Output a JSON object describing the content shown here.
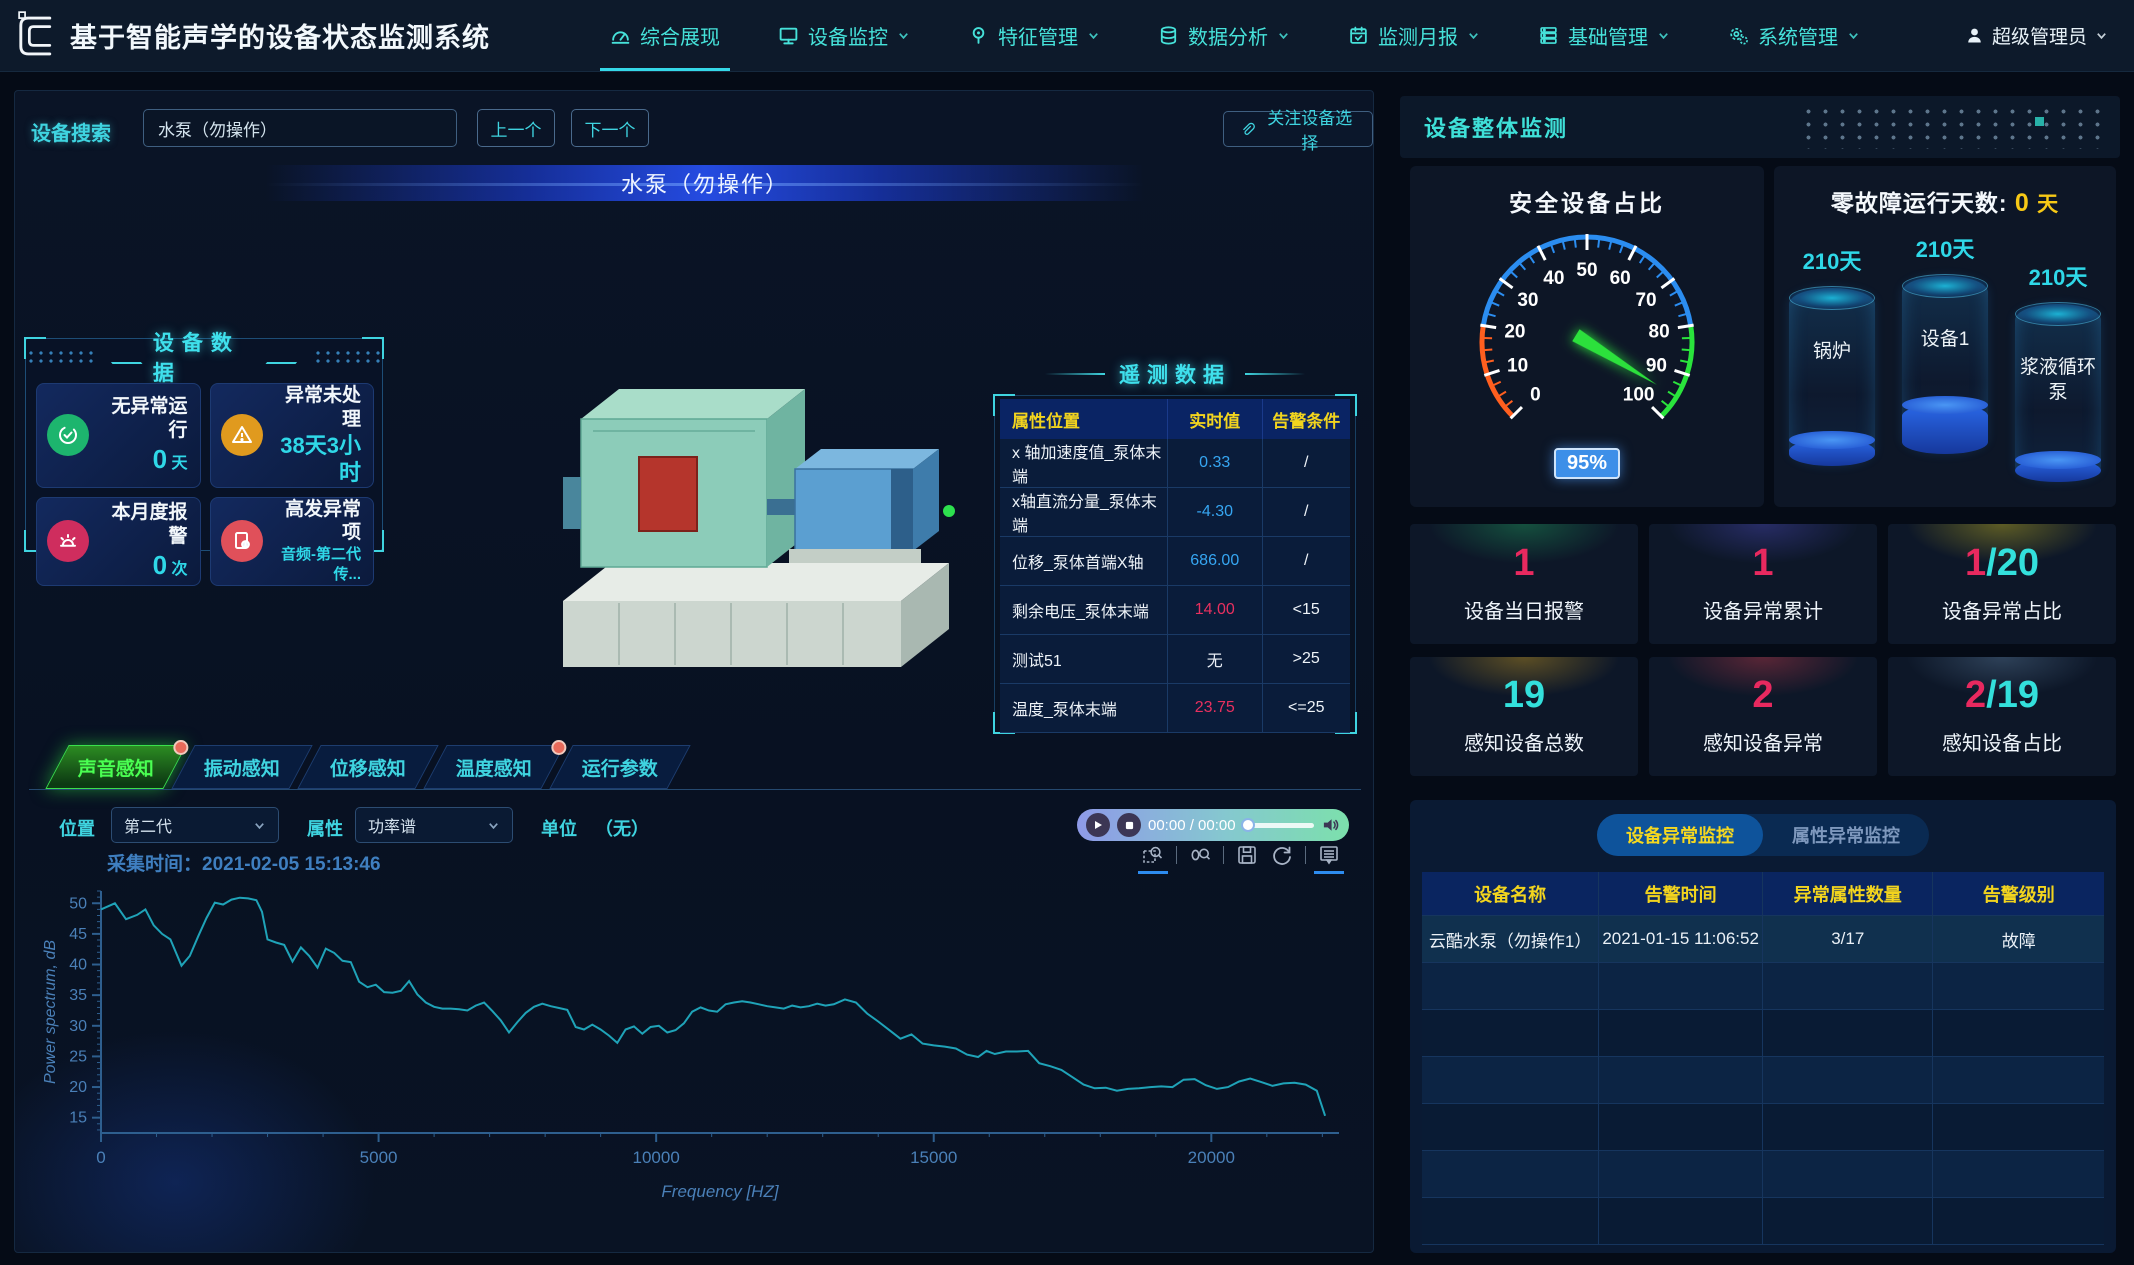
{
  "app": {
    "title": "基于智能声学的设备状态监测系统"
  },
  "nav": {
    "items": [
      {
        "label": "综合展现"
      },
      {
        "label": "设备监控"
      },
      {
        "label": "特征管理"
      },
      {
        "label": "数据分析"
      },
      {
        "label": "监测月报"
      },
      {
        "label": "基础管理"
      },
      {
        "label": "系统管理"
      }
    ],
    "user": {
      "label": "超级管理员"
    }
  },
  "left": {
    "search": {
      "label": "设备搜索",
      "value": "水泵（勿操作）",
      "prev": "上一个",
      "next": "下一个",
      "focus_button": "关注设备选择"
    },
    "model": {
      "title": "水泵（勿操作）"
    },
    "device_data": {
      "title": "设备数据",
      "cards": [
        {
          "title": "无异常运行",
          "value": "0",
          "unit": " 天",
          "icon_color": "#1db56e"
        },
        {
          "title": "异常未处理",
          "value": "38天3小时",
          "unit": "",
          "icon_color": "#e09a1e"
        },
        {
          "title": "本月度报警",
          "value": "0",
          "unit": " 次",
          "icon_color": "#cf2d5e"
        },
        {
          "title": "高发异常项",
          "value": "音频-第二代传...",
          "unit": "",
          "icon_color": "#e0505a"
        }
      ]
    },
    "telemetry": {
      "title": "遥测数据",
      "headers": [
        "属性位置",
        "实时值",
        "告警条件"
      ],
      "rows": [
        {
          "name": "x 轴加速度值_泵体末端",
          "value": "0.33",
          "value_color": "#36a6f2",
          "cond": "/"
        },
        {
          "name": "x轴直流分量_泵体末端",
          "value": "-4.30",
          "value_color": "#36a6f2",
          "cond": "/"
        },
        {
          "name": "位移_泵体首端X轴",
          "value": "686.00",
          "value_color": "#36a6f2",
          "cond": "/"
        },
        {
          "name": "剩余电压_泵体末端",
          "value": "14.00",
          "value_color": "#e8305f",
          "cond": "<15"
        },
        {
          "name": "测试51",
          "value": "无",
          "value_color": "#e9eef5",
          "cond": ">25"
        },
        {
          "name": "温度_泵体末端",
          "value": "23.75",
          "value_color": "#e8305f",
          "cond": "<=25"
        }
      ]
    },
    "sense_tabs": [
      {
        "label": "声音感知"
      },
      {
        "label": "振动感知"
      },
      {
        "label": "位移感知"
      },
      {
        "label": "温度感知"
      },
      {
        "label": "运行参数"
      }
    ],
    "controls": {
      "position_label": "位置",
      "position_value": "第二代",
      "attr_label": "属性",
      "attr_value": "功率谱",
      "unit_label": "单位",
      "unit_value": "（无）",
      "player_time": "00:00 / 00:00"
    },
    "chart_meta": {
      "capture_label": "采集时间：",
      "capture_time": "2021-02-05 15:13:46"
    }
  },
  "chart_data": {
    "type": "line",
    "title": "",
    "xlabel": "Frequency [HZ]",
    "ylabel": "Power spectrum, dB",
    "xlim": [
      0,
      22300
    ],
    "ylim": [
      12.5,
      52
    ],
    "xticks": [
      0,
      5000,
      10000,
      15000,
      20000
    ],
    "yticks": [
      15,
      20,
      25,
      30,
      35,
      40,
      45,
      50
    ],
    "x_minor_step": 1000,
    "y_minor_step": 1,
    "line_color": "#1fa3b8",
    "axis_color": "#2e5f8f",
    "tick_text_color": "#4a80b8",
    "grid": false,
    "legend": null,
    "series": [
      {
        "name": "功率谱",
        "points": [
          [
            0,
            49
          ],
          [
            250,
            50
          ],
          [
            450,
            47.4
          ],
          [
            650,
            48.1
          ],
          [
            800,
            49
          ],
          [
            950,
            46.4
          ],
          [
            1100,
            45
          ],
          [
            1250,
            44.1
          ],
          [
            1450,
            39.8
          ],
          [
            1600,
            41.4
          ],
          [
            1750,
            44.6
          ],
          [
            1900,
            47.6
          ],
          [
            2050,
            50.1
          ],
          [
            2200,
            49.8
          ],
          [
            2350,
            50.6
          ],
          [
            2500,
            50.9
          ],
          [
            2650,
            50.8
          ],
          [
            2800,
            50.5
          ],
          [
            2900,
            48.6
          ],
          [
            3000,
            44.1
          ],
          [
            3150,
            43.6
          ],
          [
            3300,
            43.2
          ],
          [
            3450,
            40.5
          ],
          [
            3600,
            42.8
          ],
          [
            3750,
            41.4
          ],
          [
            3900,
            39.5
          ],
          [
            4050,
            42.6
          ],
          [
            4200,
            41.9
          ],
          [
            4350,
            40.6
          ],
          [
            4500,
            40.4
          ],
          [
            4650,
            37.2
          ],
          [
            4800,
            36.3
          ],
          [
            4950,
            36.7
          ],
          [
            5100,
            35.5
          ],
          [
            5250,
            35.4
          ],
          [
            5400,
            35.7
          ],
          [
            5550,
            37.3
          ],
          [
            5700,
            35.1
          ],
          [
            5850,
            33.8
          ],
          [
            6000,
            33.1
          ],
          [
            6150,
            32.8
          ],
          [
            6300,
            32.8
          ],
          [
            6450,
            32.7
          ],
          [
            6600,
            32.5
          ],
          [
            6750,
            33.3
          ],
          [
            6900,
            33.8
          ],
          [
            7050,
            32.4
          ],
          [
            7200,
            30.9
          ],
          [
            7350,
            28.9
          ],
          [
            7500,
            30.6
          ],
          [
            7650,
            32.1
          ],
          [
            7800,
            33.1
          ],
          [
            7950,
            33.6
          ],
          [
            8100,
            33.2
          ],
          [
            8250,
            32.9
          ],
          [
            8400,
            32.6
          ],
          [
            8550,
            29.8
          ],
          [
            8700,
            29.4
          ],
          [
            8850,
            30.2
          ],
          [
            9000,
            29.4
          ],
          [
            9150,
            28.4
          ],
          [
            9300,
            27.2
          ],
          [
            9450,
            29.4
          ],
          [
            9600,
            29.9
          ],
          [
            9750,
            28.7
          ],
          [
            9900,
            29.8
          ],
          [
            10050,
            30
          ],
          [
            10200,
            28.9
          ],
          [
            10350,
            29.3
          ],
          [
            10500,
            30.4
          ],
          [
            10650,
            32.3
          ],
          [
            10800,
            33
          ],
          [
            10950,
            32.5
          ],
          [
            11100,
            32.3
          ],
          [
            11250,
            33.5
          ],
          [
            11400,
            33.8
          ],
          [
            11550,
            34
          ],
          [
            11700,
            33.8
          ],
          [
            11850,
            33.5
          ],
          [
            12000,
            33.2
          ],
          [
            12150,
            33
          ],
          [
            12300,
            32.8
          ],
          [
            12450,
            33.3
          ],
          [
            12600,
            33
          ],
          [
            12750,
            33.2
          ],
          [
            12900,
            33.6
          ],
          [
            13050,
            33.3
          ],
          [
            13200,
            33.5
          ],
          [
            13400,
            34.3
          ],
          [
            13600,
            33.8
          ],
          [
            13800,
            32
          ],
          [
            14000,
            30.7
          ],
          [
            14200,
            29.3
          ],
          [
            14400,
            27.9
          ],
          [
            14600,
            28.6
          ],
          [
            14800,
            27.1
          ],
          [
            15000,
            26.8
          ],
          [
            15200,
            26.6
          ],
          [
            15400,
            26.3
          ],
          [
            15600,
            25.3
          ],
          [
            15800,
            24.9
          ],
          [
            15950,
            25.9
          ],
          [
            16100,
            25.4
          ],
          [
            16300,
            25.8
          ],
          [
            16500,
            25.8
          ],
          [
            16700,
            25.9
          ],
          [
            16900,
            23.9
          ],
          [
            17100,
            23.4
          ],
          [
            17300,
            22.8
          ],
          [
            17500,
            21.6
          ],
          [
            17700,
            20.4
          ],
          [
            17900,
            19.8
          ],
          [
            18100,
            19.9
          ],
          [
            18300,
            19.4
          ],
          [
            18500,
            19.7
          ],
          [
            18700,
            19.8
          ],
          [
            18900,
            20
          ],
          [
            19100,
            20.1
          ],
          [
            19300,
            20
          ],
          [
            19500,
            21.2
          ],
          [
            19700,
            21.3
          ],
          [
            19900,
            20.3
          ],
          [
            20100,
            19.7
          ],
          [
            20300,
            20
          ],
          [
            20500,
            20.9
          ],
          [
            20700,
            21.4
          ],
          [
            20900,
            20.8
          ],
          [
            21100,
            20.2
          ],
          [
            21300,
            20.6
          ],
          [
            21500,
            20.7
          ],
          [
            21700,
            20.4
          ],
          [
            21900,
            19.4
          ],
          [
            22050,
            15.3
          ]
        ]
      }
    ]
  },
  "right": {
    "header": "设备整体监测",
    "gauge": {
      "title": "安全设备占比",
      "value": 95,
      "value_label": "95%",
      "min": 0,
      "max": 100,
      "ticks": [
        0,
        10,
        20,
        30,
        40,
        50,
        60,
        70,
        80,
        90,
        100
      ],
      "minor_step": 2.5,
      "needle_color": "#2ce03c",
      "segments": [
        {
          "from": 0,
          "to": 20,
          "color": "#ff5f1f"
        },
        {
          "from": 20,
          "to": 80,
          "color": "#2b8df0"
        },
        {
          "from": 80,
          "to": 100,
          "color": "#2ae43c"
        }
      ]
    },
    "days": {
      "title": "零故障运行天数:",
      "value": "0",
      "unit": "天",
      "cylinders": [
        {
          "days": "210天",
          "name": "锅炉",
          "level": "15%"
        },
        {
          "days": "210天",
          "name": "设备1",
          "level": "28%"
        },
        {
          "days": "210天",
          "name": "浆液循环泵",
          "level": "13%"
        }
      ]
    },
    "stats": [
      {
        "value": "1",
        "value2": "",
        "value_color": "#e8295f",
        "value2_color": "#33e0dc",
        "label": "设备当日报警",
        "glow": "rgba(31,157,92,0.85)"
      },
      {
        "value": "1",
        "value2": "",
        "value_color": "#e8295f",
        "value2_color": "#33e0dc",
        "label": "设备异常累计",
        "glow": "rgba(75,73,184,0.85)"
      },
      {
        "value": "1",
        "value2": "/20",
        "value_color": "#e8295f",
        "value2_color": "#33e0dc",
        "label": "设备异常占比",
        "glow": "rgba(200,184,32,0.85)"
      },
      {
        "value": "19",
        "value2": "",
        "value_color": "#33e0dc",
        "value2_color": "#33e0dc",
        "label": "感知设备总数",
        "glow": "rgba(200,154,32,0.85)"
      },
      {
        "value": "2",
        "value2": "",
        "value_color": "#e8295f",
        "value2_color": "#33e0dc",
        "label": "感知设备异常",
        "glow": "rgba(192,58,74,0.85)"
      },
      {
        "value": "2",
        "value2": "/19",
        "value_color": "#e8295f",
        "value2_color": "#33e0dc",
        "label": "感知设备占比",
        "glow": "rgba(90,122,154,0.85)"
      }
    ],
    "alarm": {
      "tabs": [
        {
          "label": "设备异常监控"
        },
        {
          "label": "属性异常监控"
        }
      ],
      "headers": [
        "设备名称",
        "告警时间",
        "异常属性数量",
        "告警级别"
      ],
      "row": {
        "name": "云酷水泵（勿操作1）",
        "time": "2021-01-15 11:06:52",
        "count": "3/17",
        "level": "故障"
      }
    }
  }
}
